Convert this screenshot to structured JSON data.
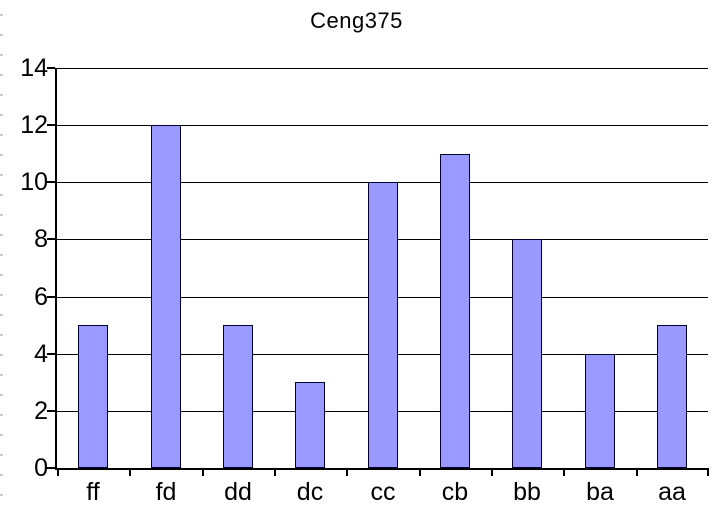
{
  "window": {
    "background": "#ffffff"
  },
  "chart_data": {
    "type": "bar",
    "title": "Ceng375",
    "categories": [
      "ff",
      "fd",
      "dd",
      "dc",
      "cc",
      "cb",
      "bb",
      "ba",
      "aa"
    ],
    "values": [
      5,
      12,
      5,
      3,
      10,
      11,
      8,
      4,
      5
    ],
    "xlabel": "",
    "ylabel": "",
    "ylim": [
      0,
      14
    ],
    "yticks": [
      0,
      2,
      4,
      6,
      8,
      10,
      12,
      14
    ],
    "grid": true,
    "legend": "none",
    "bar_color": "#9999ff",
    "bar_border_color": "#000033",
    "axis_color": "#000000",
    "gridline_color": "#000000",
    "text_color": "#000000"
  }
}
